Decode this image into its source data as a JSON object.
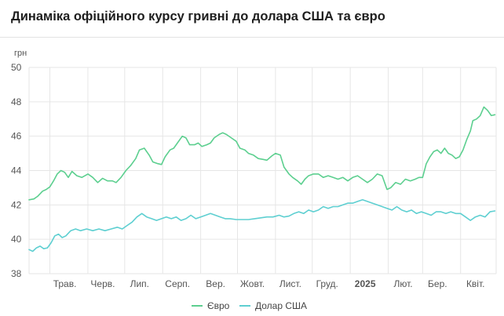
{
  "title": "Динаміка офіційного курсу гривні до долара США та євро",
  "chart_data": {
    "type": "line",
    "title": "Динаміка офіційного курсу гривні до долара США та євро",
    "ylabel": "грн",
    "xlabel": "",
    "ylim": [
      38,
      50
    ],
    "yticks": [
      38,
      40,
      42,
      44,
      46,
      48,
      50
    ],
    "grid": true,
    "legend_position": "bottom-center",
    "x_period": {
      "start": "2024-04-14",
      "end": "2025-04-30"
    },
    "x_ticks": [
      {
        "label": "Трав.",
        "date": "2024-05-01",
        "bold": false
      },
      {
        "label": "Черв.",
        "date": "2024-06-01",
        "bold": false
      },
      {
        "label": "Лип.",
        "date": "2024-07-01",
        "bold": false
      },
      {
        "label": "Серп.",
        "date": "2024-08-01",
        "bold": false
      },
      {
        "label": "Вер.",
        "date": "2024-09-01",
        "bold": false
      },
      {
        "label": "Жовт.",
        "date": "2024-10-01",
        "bold": false
      },
      {
        "label": "Лист.",
        "date": "2024-11-01",
        "bold": false
      },
      {
        "label": "Груд.",
        "date": "2024-12-01",
        "bold": false
      },
      {
        "label": "2025",
        "date": "2025-01-01",
        "bold": true
      },
      {
        "label": "Лют.",
        "date": "2025-02-01",
        "bold": false
      },
      {
        "label": "Бер.",
        "date": "2025-03-01",
        "bold": false
      },
      {
        "label": "Квіт.",
        "date": "2025-04-01",
        "bold": false
      }
    ],
    "series": [
      {
        "name": "Євро",
        "color": "#5ccf8f",
        "points": [
          [
            "2024-04-14",
            42.3
          ],
          [
            "2024-04-18",
            42.35
          ],
          [
            "2024-04-21",
            42.5
          ],
          [
            "2024-04-25",
            42.8
          ],
          [
            "2024-04-28",
            42.9
          ],
          [
            "2024-05-01",
            43.05
          ],
          [
            "2024-05-04",
            43.4
          ],
          [
            "2024-05-07",
            43.8
          ],
          [
            "2024-05-10",
            44.0
          ],
          [
            "2024-05-13",
            43.9
          ],
          [
            "2024-05-16",
            43.6
          ],
          [
            "2024-05-19",
            43.95
          ],
          [
            "2024-05-23",
            43.7
          ],
          [
            "2024-05-27",
            43.6
          ],
          [
            "2024-06-01",
            43.8
          ],
          [
            "2024-06-05",
            43.6
          ],
          [
            "2024-06-09",
            43.3
          ],
          [
            "2024-06-13",
            43.55
          ],
          [
            "2024-06-17",
            43.4
          ],
          [
            "2024-06-21",
            43.4
          ],
          [
            "2024-06-24",
            43.3
          ],
          [
            "2024-06-28",
            43.6
          ],
          [
            "2024-07-02",
            44.0
          ],
          [
            "2024-07-06",
            44.3
          ],
          [
            "2024-07-10",
            44.7
          ],
          [
            "2024-07-13",
            45.2
          ],
          [
            "2024-07-17",
            45.3
          ],
          [
            "2024-07-21",
            44.9
          ],
          [
            "2024-07-24",
            44.5
          ],
          [
            "2024-07-28",
            44.4
          ],
          [
            "2024-07-31",
            44.35
          ],
          [
            "2024-08-03",
            44.8
          ],
          [
            "2024-08-07",
            45.2
          ],
          [
            "2024-08-10",
            45.3
          ],
          [
            "2024-08-13",
            45.6
          ],
          [
            "2024-08-17",
            46.0
          ],
          [
            "2024-08-20",
            45.9
          ],
          [
            "2024-08-23",
            45.5
          ],
          [
            "2024-08-27",
            45.5
          ],
          [
            "2024-08-30",
            45.6
          ],
          [
            "2024-09-02",
            45.4
          ],
          [
            "2024-09-06",
            45.5
          ],
          [
            "2024-09-09",
            45.6
          ],
          [
            "2024-09-12",
            45.9
          ],
          [
            "2024-09-16",
            46.1
          ],
          [
            "2024-09-19",
            46.2
          ],
          [
            "2024-09-22",
            46.1
          ],
          [
            "2024-09-26",
            45.9
          ],
          [
            "2024-09-30",
            45.7
          ],
          [
            "2024-10-03",
            45.3
          ],
          [
            "2024-10-07",
            45.2
          ],
          [
            "2024-10-10",
            45.0
          ],
          [
            "2024-10-14",
            44.9
          ],
          [
            "2024-10-18",
            44.7
          ],
          [
            "2024-10-22",
            44.65
          ],
          [
            "2024-10-25",
            44.6
          ],
          [
            "2024-10-29",
            44.85
          ],
          [
            "2024-11-01",
            45.0
          ],
          [
            "2024-11-05",
            44.9
          ],
          [
            "2024-11-08",
            44.2
          ],
          [
            "2024-11-12",
            43.8
          ],
          [
            "2024-11-15",
            43.6
          ],
          [
            "2024-11-19",
            43.4
          ],
          [
            "2024-11-22",
            43.2
          ],
          [
            "2024-11-25",
            43.5
          ],
          [
            "2024-11-28",
            43.7
          ],
          [
            "2024-12-02",
            43.8
          ],
          [
            "2024-12-06",
            43.8
          ],
          [
            "2024-12-10",
            43.6
          ],
          [
            "2024-12-14",
            43.7
          ],
          [
            "2024-12-18",
            43.6
          ],
          [
            "2024-12-22",
            43.5
          ],
          [
            "2024-12-26",
            43.6
          ],
          [
            "2024-12-30",
            43.4
          ],
          [
            "2025-01-03",
            43.6
          ],
          [
            "2025-01-07",
            43.7
          ],
          [
            "2025-01-11",
            43.5
          ],
          [
            "2025-01-15",
            43.3
          ],
          [
            "2025-01-19",
            43.5
          ],
          [
            "2025-01-23",
            43.8
          ],
          [
            "2025-01-27",
            43.7
          ],
          [
            "2025-01-31",
            42.9
          ],
          [
            "2025-02-03",
            43.0
          ],
          [
            "2025-02-07",
            43.3
          ],
          [
            "2025-02-11",
            43.2
          ],
          [
            "2025-02-15",
            43.5
          ],
          [
            "2025-02-19",
            43.4
          ],
          [
            "2025-02-23",
            43.5
          ],
          [
            "2025-02-26",
            43.6
          ],
          [
            "2025-03-01",
            43.6
          ],
          [
            "2025-03-04",
            44.4
          ],
          [
            "2025-03-07",
            44.8
          ],
          [
            "2025-03-10",
            45.1
          ],
          [
            "2025-03-13",
            45.2
          ],
          [
            "2025-03-16",
            45.0
          ],
          [
            "2025-03-19",
            45.3
          ],
          [
            "2025-03-22",
            45.0
          ],
          [
            "2025-03-25",
            44.9
          ],
          [
            "2025-03-28",
            44.7
          ],
          [
            "2025-03-31",
            44.8
          ],
          [
            "2025-04-03",
            45.2
          ],
          [
            "2025-04-06",
            45.8
          ],
          [
            "2025-04-09",
            46.3
          ],
          [
            "2025-04-11",
            46.9
          ],
          [
            "2025-04-14",
            47.0
          ],
          [
            "2025-04-17",
            47.2
          ],
          [
            "2025-04-20",
            47.7
          ],
          [
            "2025-04-23",
            47.5
          ],
          [
            "2025-04-26",
            47.2
          ],
          [
            "2025-04-29",
            47.25
          ]
        ]
      },
      {
        "name": "Долар США",
        "color": "#5ecfd1",
        "points": [
          [
            "2024-04-14",
            39.4
          ],
          [
            "2024-04-17",
            39.3
          ],
          [
            "2024-04-20",
            39.5
          ],
          [
            "2024-04-23",
            39.6
          ],
          [
            "2024-04-26",
            39.45
          ],
          [
            "2024-04-29",
            39.5
          ],
          [
            "2024-05-02",
            39.8
          ],
          [
            "2024-05-05",
            40.2
          ],
          [
            "2024-05-08",
            40.3
          ],
          [
            "2024-05-11",
            40.1
          ],
          [
            "2024-05-14",
            40.2
          ],
          [
            "2024-05-18",
            40.5
          ],
          [
            "2024-05-22",
            40.6
          ],
          [
            "2024-05-26",
            40.5
          ],
          [
            "2024-05-31",
            40.6
          ],
          [
            "2024-06-05",
            40.5
          ],
          [
            "2024-06-10",
            40.6
          ],
          [
            "2024-06-15",
            40.5
          ],
          [
            "2024-06-20",
            40.6
          ],
          [
            "2024-06-25",
            40.7
          ],
          [
            "2024-06-29",
            40.6
          ],
          [
            "2024-07-03",
            40.8
          ],
          [
            "2024-07-07",
            41.0
          ],
          [
            "2024-07-11",
            41.3
          ],
          [
            "2024-07-15",
            41.5
          ],
          [
            "2024-07-19",
            41.3
          ],
          [
            "2024-07-23",
            41.2
          ],
          [
            "2024-07-27",
            41.1
          ],
          [
            "2024-07-31",
            41.2
          ],
          [
            "2024-08-04",
            41.3
          ],
          [
            "2024-08-08",
            41.2
          ],
          [
            "2024-08-12",
            41.3
          ],
          [
            "2024-08-16",
            41.1
          ],
          [
            "2024-08-20",
            41.2
          ],
          [
            "2024-08-24",
            41.4
          ],
          [
            "2024-08-28",
            41.2
          ],
          [
            "2024-09-01",
            41.3
          ],
          [
            "2024-09-05",
            41.4
          ],
          [
            "2024-09-09",
            41.5
          ],
          [
            "2024-09-13",
            41.4
          ],
          [
            "2024-09-17",
            41.3
          ],
          [
            "2024-09-21",
            41.2
          ],
          [
            "2024-09-25",
            41.2
          ],
          [
            "2024-09-30",
            41.15
          ],
          [
            "2024-10-05",
            41.15
          ],
          [
            "2024-10-10",
            41.15
          ],
          [
            "2024-10-15",
            41.2
          ],
          [
            "2024-10-20",
            41.25
          ],
          [
            "2024-10-25",
            41.3
          ],
          [
            "2024-10-30",
            41.3
          ],
          [
            "2024-11-04",
            41.4
          ],
          [
            "2024-11-08",
            41.3
          ],
          [
            "2024-11-12",
            41.35
          ],
          [
            "2024-11-16",
            41.5
          ],
          [
            "2024-11-20",
            41.6
          ],
          [
            "2024-11-24",
            41.5
          ],
          [
            "2024-11-28",
            41.7
          ],
          [
            "2024-12-02",
            41.6
          ],
          [
            "2024-12-06",
            41.7
          ],
          [
            "2024-12-10",
            41.9
          ],
          [
            "2024-12-14",
            41.8
          ],
          [
            "2024-12-18",
            41.9
          ],
          [
            "2024-12-22",
            41.9
          ],
          [
            "2024-12-26",
            42.0
          ],
          [
            "2024-12-30",
            42.1
          ],
          [
            "2025-01-03",
            42.1
          ],
          [
            "2025-01-07",
            42.2
          ],
          [
            "2025-01-11",
            42.3
          ],
          [
            "2025-01-15",
            42.2
          ],
          [
            "2025-01-19",
            42.1
          ],
          [
            "2025-01-23",
            42.0
          ],
          [
            "2025-01-27",
            41.9
          ],
          [
            "2025-01-31",
            41.8
          ],
          [
            "2025-02-04",
            41.7
          ],
          [
            "2025-02-08",
            41.9
          ],
          [
            "2025-02-12",
            41.7
          ],
          [
            "2025-02-16",
            41.6
          ],
          [
            "2025-02-20",
            41.7
          ],
          [
            "2025-02-24",
            41.5
          ],
          [
            "2025-02-28",
            41.6
          ],
          [
            "2025-03-04",
            41.5
          ],
          [
            "2025-03-08",
            41.4
          ],
          [
            "2025-03-12",
            41.6
          ],
          [
            "2025-03-16",
            41.6
          ],
          [
            "2025-03-20",
            41.5
          ],
          [
            "2025-03-24",
            41.6
          ],
          [
            "2025-03-28",
            41.5
          ],
          [
            "2025-04-01",
            41.5
          ],
          [
            "2025-04-05",
            41.3
          ],
          [
            "2025-04-09",
            41.1
          ],
          [
            "2025-04-13",
            41.3
          ],
          [
            "2025-04-17",
            41.4
          ],
          [
            "2025-04-21",
            41.3
          ],
          [
            "2025-04-25",
            41.6
          ],
          [
            "2025-04-29",
            41.65
          ]
        ]
      }
    ]
  }
}
